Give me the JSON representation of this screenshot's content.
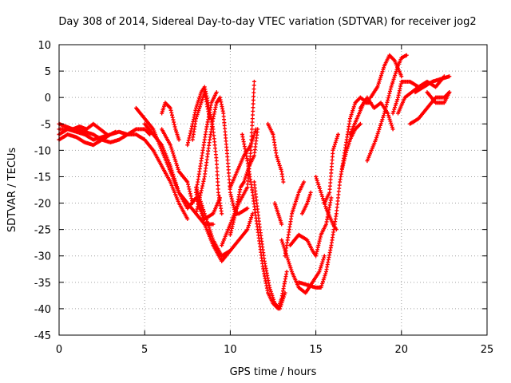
{
  "chart_data": {
    "type": "scatter",
    "title": "Day 308 of 2014, Sidereal Day-to-day VTEC variation (SDTVAR) for receiver jog2",
    "xlabel": "GPS time / hours",
    "ylabel": "SDTVAR / TECUs",
    "xlim": [
      0,
      25
    ],
    "ylim": [
      -45,
      10
    ],
    "xticks": [
      "0",
      "5",
      "10",
      "15",
      "20",
      "25"
    ],
    "yticks": [
      "10",
      "5",
      "0",
      "-5",
      "-10",
      "-15",
      "-20",
      "-25",
      "-30",
      "-35",
      "-40",
      "-45"
    ],
    "grid": true,
    "marker": "plus",
    "color": "#ff0000",
    "series": [
      {
        "tracks": [
          [
            [
              0,
              -7
            ],
            [
              0.5,
              -6
            ],
            [
              1,
              -6.5
            ],
            [
              1.5,
              -7
            ],
            [
              2,
              -8
            ],
            [
              2.5,
              -7.5
            ],
            [
              3,
              -7
            ],
            [
              3.5,
              -6.5
            ],
            [
              4,
              -7
            ],
            [
              4.5,
              -7
            ],
            [
              5,
              -8
            ],
            [
              5.5,
              -10
            ],
            [
              6,
              -13
            ],
            [
              6.5,
              -16
            ],
            [
              7,
              -20
            ],
            [
              7.5,
              -23
            ]
          ],
          [
            [
              0,
              -8
            ],
            [
              0.5,
              -7
            ],
            [
              1,
              -7.5
            ],
            [
              1.5,
              -8.5
            ],
            [
              2,
              -9
            ],
            [
              2.5,
              -8
            ],
            [
              3,
              -8.5
            ],
            [
              3.5,
              -8
            ],
            [
              4,
              -7
            ],
            [
              4.5,
              -6
            ],
            [
              5,
              -6
            ],
            [
              5.3,
              -7
            ]
          ],
          [
            [
              0,
              -5
            ],
            [
              0.4,
              -5.5
            ],
            [
              0.8,
              -6
            ],
            [
              1.2,
              -5.5
            ],
            [
              1.6,
              -6
            ],
            [
              2,
              -5
            ],
            [
              2.4,
              -6
            ],
            [
              2.8,
              -7
            ]
          ],
          [
            [
              0,
              -6
            ],
            [
              1,
              -6
            ],
            [
              2,
              -7
            ],
            [
              2.5,
              -8
            ],
            [
              3,
              -7
            ],
            [
              3.3,
              -6.5
            ]
          ],
          [
            [
              4.5,
              -2
            ],
            [
              5,
              -4
            ],
            [
              5.5,
              -6
            ],
            [
              6,
              -10
            ],
            [
              6.5,
              -14
            ],
            [
              7,
              -18
            ],
            [
              7.5,
              -20
            ],
            [
              8,
              -22
            ],
            [
              8.5,
              -24
            ],
            [
              9,
              -24
            ]
          ],
          [
            [
              5,
              -5
            ],
            [
              5.5,
              -7
            ],
            [
              6,
              -9
            ],
            [
              6.5,
              -13
            ],
            [
              7,
              -18
            ],
            [
              7.5,
              -21
            ],
            [
              8,
              -19
            ],
            [
              8.5,
              -23
            ],
            [
              9,
              -22
            ],
            [
              9.4,
              -19
            ]
          ],
          [
            [
              6,
              -3
            ],
            [
              6.2,
              -1
            ],
            [
              6.5,
              -2
            ],
            [
              6.8,
              -6
            ],
            [
              7,
              -8
            ]
          ],
          [
            [
              6,
              -6
            ],
            [
              6.5,
              -9
            ],
            [
              7,
              -14
            ],
            [
              7.5,
              -16
            ],
            [
              7.8,
              -20
            ]
          ]
        ]
      },
      {
        "tracks": [
          [
            [
              7.5,
              -9
            ],
            [
              7.8,
              -5
            ],
            [
              8,
              -2
            ],
            [
              8.3,
              1
            ],
            [
              8.5,
              2
            ],
            [
              8.7,
              -1
            ],
            [
              9,
              -6
            ],
            [
              9.2,
              -12
            ],
            [
              9.3,
              -18
            ],
            [
              9.5,
              -22
            ]
          ],
          [
            [
              8,
              -22
            ],
            [
              8.5,
              -15
            ],
            [
              8.8,
              -8
            ],
            [
              9,
              -4
            ],
            [
              9.2,
              -1
            ],
            [
              9.4,
              0
            ],
            [
              9.6,
              -3
            ],
            [
              9.8,
              -10
            ],
            [
              10,
              -18
            ],
            [
              10.3,
              -22
            ],
            [
              10.5,
              -22
            ],
            [
              11,
              -21
            ]
          ],
          [
            [
              7.8,
              -8
            ],
            [
              8,
              -4
            ],
            [
              8.3,
              -1
            ],
            [
              8.5,
              1
            ],
            [
              8.8,
              -4
            ]
          ],
          [
            [
              8,
              -18
            ],
            [
              8.3,
              -12
            ],
            [
              8.6,
              -6
            ],
            [
              8.9,
              -1
            ],
            [
              9.2,
              1
            ]
          ],
          [
            [
              8,
              -17
            ],
            [
              8.5,
              -22
            ],
            [
              9,
              -27
            ],
            [
              9.5,
              -30
            ],
            [
              10,
              -29
            ],
            [
              10.5,
              -27
            ],
            [
              11,
              -25
            ],
            [
              11.3,
              -22
            ]
          ],
          [
            [
              8,
              -18
            ],
            [
              8.5,
              -24
            ],
            [
              9,
              -28
            ],
            [
              9.5,
              -31
            ],
            [
              10,
              -29
            ]
          ],
          [
            [
              9.5,
              -28
            ],
            [
              10,
              -24
            ],
            [
              10.5,
              -20
            ],
            [
              11,
              -17
            ],
            [
              11.2,
              -10
            ],
            [
              11.3,
              -4
            ],
            [
              11.4,
              3
            ]
          ],
          [
            [
              10,
              -17
            ],
            [
              10.4,
              -14
            ],
            [
              10.8,
              -11
            ],
            [
              11.2,
              -9
            ],
            [
              11.5,
              -6
            ]
          ],
          [
            [
              10,
              -26
            ],
            [
              10.3,
              -22
            ],
            [
              10.6,
              -17
            ],
            [
              10.8,
              -16
            ],
            [
              11.1,
              -13
            ],
            [
              11.4,
              -11
            ],
            [
              11.6,
              -6
            ]
          ],
          [
            [
              10.7,
              -7
            ],
            [
              11,
              -12
            ],
            [
              11.3,
              -18
            ],
            [
              11.6,
              -25
            ],
            [
              11.9,
              -32
            ],
            [
              12.2,
              -37
            ],
            [
              12.5,
              -39
            ],
            [
              12.8,
              -40
            ],
            [
              13,
              -38
            ],
            [
              13.3,
              -33
            ]
          ],
          [
            [
              11.4,
              -16
            ],
            [
              11.7,
              -24
            ],
            [
              12,
              -31
            ],
            [
              12.3,
              -36
            ],
            [
              12.6,
              -39
            ],
            [
              12.9,
              -40
            ],
            [
              13.2,
              -37
            ]
          ],
          [
            [
              12.2,
              -5
            ],
            [
              12.5,
              -7
            ],
            [
              12.7,
              -11
            ],
            [
              13,
              -14
            ],
            [
              13.1,
              -16
            ]
          ],
          [
            [
              12.6,
              -20
            ],
            [
              12.8,
              -22
            ],
            [
              13,
              -24
            ]
          ],
          [
            [
              13,
              -27
            ],
            [
              13.3,
              -30
            ],
            [
              13.6,
              -33
            ],
            [
              14,
              -36
            ],
            [
              14.4,
              -37
            ],
            [
              14.8,
              -35
            ],
            [
              15.2,
              -33
            ],
            [
              15.5,
              -30
            ]
          ]
        ]
      },
      {
        "tracks": [
          [
            [
              13.2,
              -30
            ],
            [
              13.4,
              -26
            ],
            [
              13.6,
              -22
            ],
            [
              13.8,
              -20
            ],
            [
              14,
              -18
            ],
            [
              14.3,
              -16
            ]
          ],
          [
            [
              13.5,
              -28
            ],
            [
              14,
              -26
            ],
            [
              14.5,
              -27
            ],
            [
              14.8,
              -29
            ],
            [
              15,
              -30
            ],
            [
              15.3,
              -26
            ],
            [
              15.6,
              -24
            ],
            [
              15.9,
              -19
            ]
          ],
          [
            [
              14,
              -35
            ],
            [
              14.5,
              -35.5
            ],
            [
              15,
              -36
            ],
            [
              15.3,
              -36
            ],
            [
              15.6,
              -33
            ],
            [
              15.9,
              -28
            ],
            [
              16.2,
              -22
            ],
            [
              16.4,
              -16
            ],
            [
              16.6,
              -12
            ],
            [
              16.8,
              -8
            ],
            [
              17,
              -4
            ],
            [
              17.3,
              -1
            ],
            [
              17.6,
              0
            ],
            [
              18,
              -1
            ]
          ],
          [
            [
              14.2,
              -22
            ],
            [
              14.5,
              -20
            ],
            [
              14.7,
              -18
            ]
          ],
          [
            [
              15,
              -15
            ],
            [
              15.3,
              -18
            ],
            [
              15.6,
              -21
            ],
            [
              16,
              -24
            ],
            [
              16.2,
              -25
            ]
          ],
          [
            [
              15.5,
              -20
            ],
            [
              15.8,
              -18
            ],
            [
              16,
              -10
            ],
            [
              16.3,
              -7
            ]
          ],
          [
            [
              16.5,
              -14
            ],
            [
              16.8,
              -10
            ],
            [
              17,
              -8
            ],
            [
              17.3,
              -6
            ],
            [
              17.6,
              -5
            ]
          ],
          [
            [
              17,
              -7
            ],
            [
              17.4,
              -4
            ],
            [
              17.8,
              -1
            ],
            [
              18.2,
              -1
            ]
          ],
          [
            [
              18.2,
              0
            ],
            [
              18.6,
              2
            ],
            [
              19,
              6
            ],
            [
              19.3,
              8
            ],
            [
              19.6,
              7
            ],
            [
              20,
              4
            ]
          ],
          [
            [
              17.6,
              -2
            ],
            [
              18,
              0
            ],
            [
              18.4,
              -2
            ],
            [
              18.8,
              -1
            ],
            [
              19.2,
              -3
            ],
            [
              19.5,
              -6
            ]
          ],
          [
            [
              18,
              -12
            ],
            [
              18.5,
              -8
            ],
            [
              19,
              -3
            ],
            [
              19.4,
              2
            ],
            [
              19.8,
              6
            ],
            [
              20,
              7.5
            ],
            [
              20.3,
              8
            ]
          ],
          [
            [
              19.5,
              -3
            ],
            [
              19.8,
              0
            ],
            [
              20,
              3
            ],
            [
              20.5,
              3
            ],
            [
              21,
              2
            ],
            [
              21.5,
              3
            ],
            [
              22,
              2
            ],
            [
              22.5,
              4
            ]
          ],
          [
            [
              20.5,
              -5
            ],
            [
              21,
              -4
            ],
            [
              21.5,
              -2
            ],
            [
              22,
              0
            ],
            [
              22.5,
              0
            ],
            [
              22.8,
              1
            ]
          ],
          [
            [
              20.8,
              1
            ],
            [
              21.3,
              2
            ],
            [
              21.8,
              3
            ],
            [
              22.3,
              3.5
            ],
            [
              22.8,
              4
            ]
          ],
          [
            [
              19.8,
              -3
            ],
            [
              20.2,
              0
            ],
            [
              20.6,
              1
            ],
            [
              21,
              2
            ]
          ],
          [
            [
              21.5,
              1
            ],
            [
              22,
              -1
            ],
            [
              22.5,
              -1
            ],
            [
              22.8,
              1
            ]
          ]
        ]
      }
    ]
  }
}
